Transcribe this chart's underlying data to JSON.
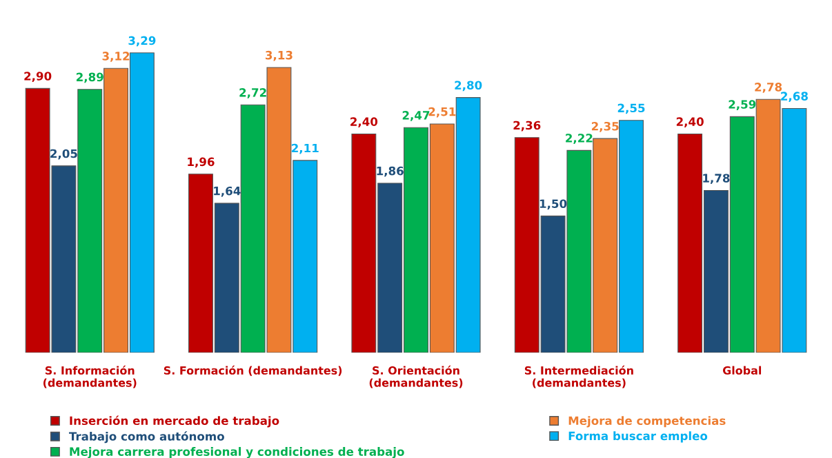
{
  "chart_data": {
    "type": "bar",
    "categories": [
      "S. Información\n(demandantes)",
      "S. Formación (demandantes)",
      "S. Orientación\n(demandantes)",
      "S. Intermediación\n(demandantes)",
      "Global"
    ],
    "series": [
      {
        "name": "Inserción en mercado de trabajo",
        "color": "#c00000",
        "values": [
          2.9,
          1.96,
          2.4,
          2.36,
          2.4
        ],
        "value_labels": [
          "2,90",
          "1,96",
          "2,40",
          "2,36",
          "2,40"
        ]
      },
      {
        "name": "Trabajo como autónomo",
        "color": "#1f4e79",
        "values": [
          2.05,
          1.64,
          1.86,
          1.5,
          1.78
        ],
        "value_labels": [
          "2,05",
          "1,64",
          "1,86",
          "1,50",
          "1,78"
        ]
      },
      {
        "name": "Mejora carrera profesional y condiciones de trabajo",
        "color": "#00b050",
        "values": [
          2.89,
          2.72,
          2.47,
          2.22,
          2.59
        ],
        "value_labels": [
          "2,89",
          "2,72",
          "2,47",
          "2,22",
          "2,59"
        ]
      },
      {
        "name": "Mejora de competencias",
        "color": "#ed7d31",
        "values": [
          3.12,
          3.13,
          2.51,
          2.35,
          2.78
        ],
        "value_labels": [
          "3,12",
          "3,13",
          "2,51",
          "2,35",
          "2,78"
        ]
      },
      {
        "name": "Forma buscar empleo",
        "color": "#00b0f0",
        "values": [
          3.29,
          2.11,
          2.8,
          2.55,
          2.68
        ],
        "value_labels": [
          "3,29",
          "2,11",
          "2,80",
          "2,55",
          "2,68"
        ]
      }
    ],
    "legend": "bottom",
    "grid": false,
    "tick_labels": "x"
  }
}
